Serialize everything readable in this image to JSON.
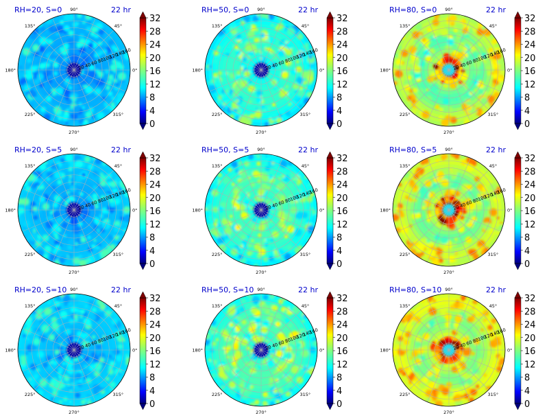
{
  "figure": {
    "panels": [
      {
        "title_left": "RH=20, S=0",
        "title_right": "22 hr",
        "inner_start": 0
      },
      {
        "title_left": "RH=50, S=0",
        "title_right": "22 hr",
        "inner_start": 0
      },
      {
        "title_left": "RH=80, S=0",
        "title_right": "22 hr",
        "inner_start": 20
      },
      {
        "title_left": "RH=20, S=5",
        "title_right": "22 hr",
        "inner_start": 0
      },
      {
        "title_left": "RH=50, S=5",
        "title_right": "22 hr",
        "inner_start": 0
      },
      {
        "title_left": "RH=80, S=5",
        "title_right": "22 hr",
        "inner_start": 20
      },
      {
        "title_left": "RH=20, S=10",
        "title_right": "22 hr",
        "inner_start": 0
      },
      {
        "title_left": "RH=50, S=10",
        "title_right": "22 hr",
        "inner_start": 20
      },
      {
        "title_left": "RH=80, S=10",
        "title_right": "22 hr",
        "inner_start": 20
      }
    ],
    "angle_labels": [
      "0°",
      "45°",
      "90°",
      "135°",
      "180°",
      "225°",
      "270°",
      "315°"
    ],
    "radial_ticks": [
      0,
      20,
      40,
      60,
      80,
      100,
      120,
      140,
      160
    ],
    "colorbar_ticks": [
      0,
      4,
      8,
      12,
      16,
      20,
      24,
      28,
      32
    ],
    "title_color": "#0000cc"
  },
  "chart_data": {
    "type": "heatmap",
    "projection": "polar",
    "layout": "3x3 grid",
    "r_range": [
      0,
      160
    ],
    "theta_range_deg": [
      0,
      360
    ],
    "color_range": [
      0,
      32
    ],
    "colormap": "jet",
    "colorbar_extend": "both",
    "grid": true,
    "panels": [
      {
        "title": "RH=20, S=0",
        "time": "22 hr"
      },
      {
        "title": "RH=50, S=0",
        "time": "22 hr"
      },
      {
        "title": "RH=80, S=0",
        "time": "22 hr"
      },
      {
        "title": "RH=20, S=5",
        "time": "22 hr"
      },
      {
        "title": "RH=50, S=5",
        "time": "22 hr"
      },
      {
        "title": "RH=80, S=5",
        "time": "22 hr"
      },
      {
        "title": "RH=20, S=10",
        "time": "22 hr"
      },
      {
        "title": "RH=50, S=10",
        "time": "22 hr"
      },
      {
        "title": "RH=80, S=10",
        "time": "22 hr"
      }
    ]
  }
}
